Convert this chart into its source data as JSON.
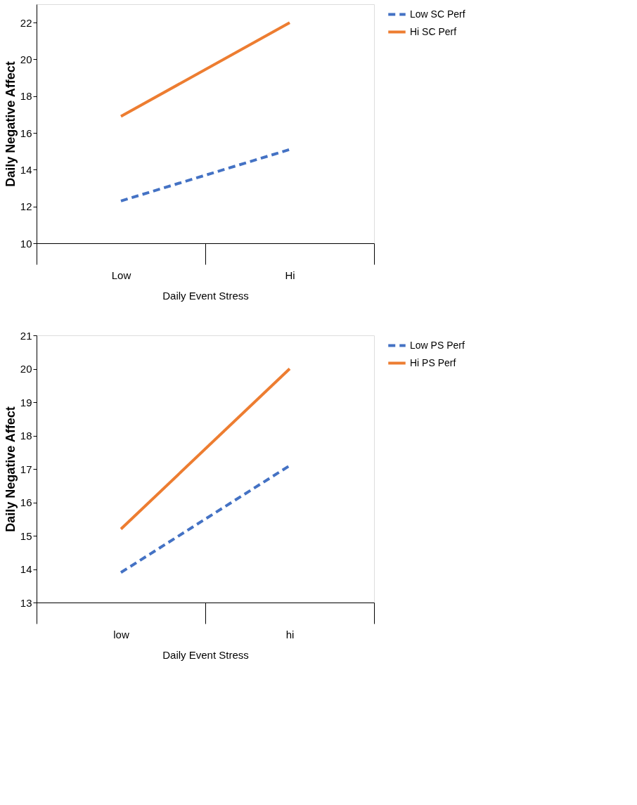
{
  "chart_data": [
    {
      "type": "line",
      "categories": [
        "Low",
        "Hi"
      ],
      "xlabel": "Daily Event Stress",
      "ylabel": "Daily Negative Affect",
      "ylim": [
        10,
        23
      ],
      "yticks": [
        10,
        12,
        14,
        16,
        18,
        20,
        22
      ],
      "grid": false,
      "legend": "right",
      "marker": "none",
      "series": [
        {
          "name": "Low SC Perf",
          "color": "#4472c4",
          "line_style": "dashed",
          "values": [
            12.3,
            15.1
          ]
        },
        {
          "name": "Hi SC Perf",
          "color": "#ed7d31",
          "line_style": "solid",
          "values": [
            16.9,
            22.0
          ]
        }
      ]
    },
    {
      "type": "line",
      "categories": [
        "low",
        "hi"
      ],
      "xlabel": "Daily Event Stress",
      "ylabel": "Daily Negative Affect",
      "ylim": [
        13,
        21
      ],
      "yticks": [
        13,
        14,
        15,
        16,
        17,
        18,
        19,
        20,
        21
      ],
      "grid": false,
      "legend": "right",
      "marker": "none",
      "series": [
        {
          "name": "Low PS Perf",
          "color": "#4472c4",
          "line_style": "dashed",
          "values": [
            13.9,
            17.1
          ]
        },
        {
          "name": "Hi PS Perf",
          "color": "#ed7d31",
          "line_style": "solid",
          "values": [
            15.2,
            20.0
          ]
        }
      ]
    }
  ]
}
